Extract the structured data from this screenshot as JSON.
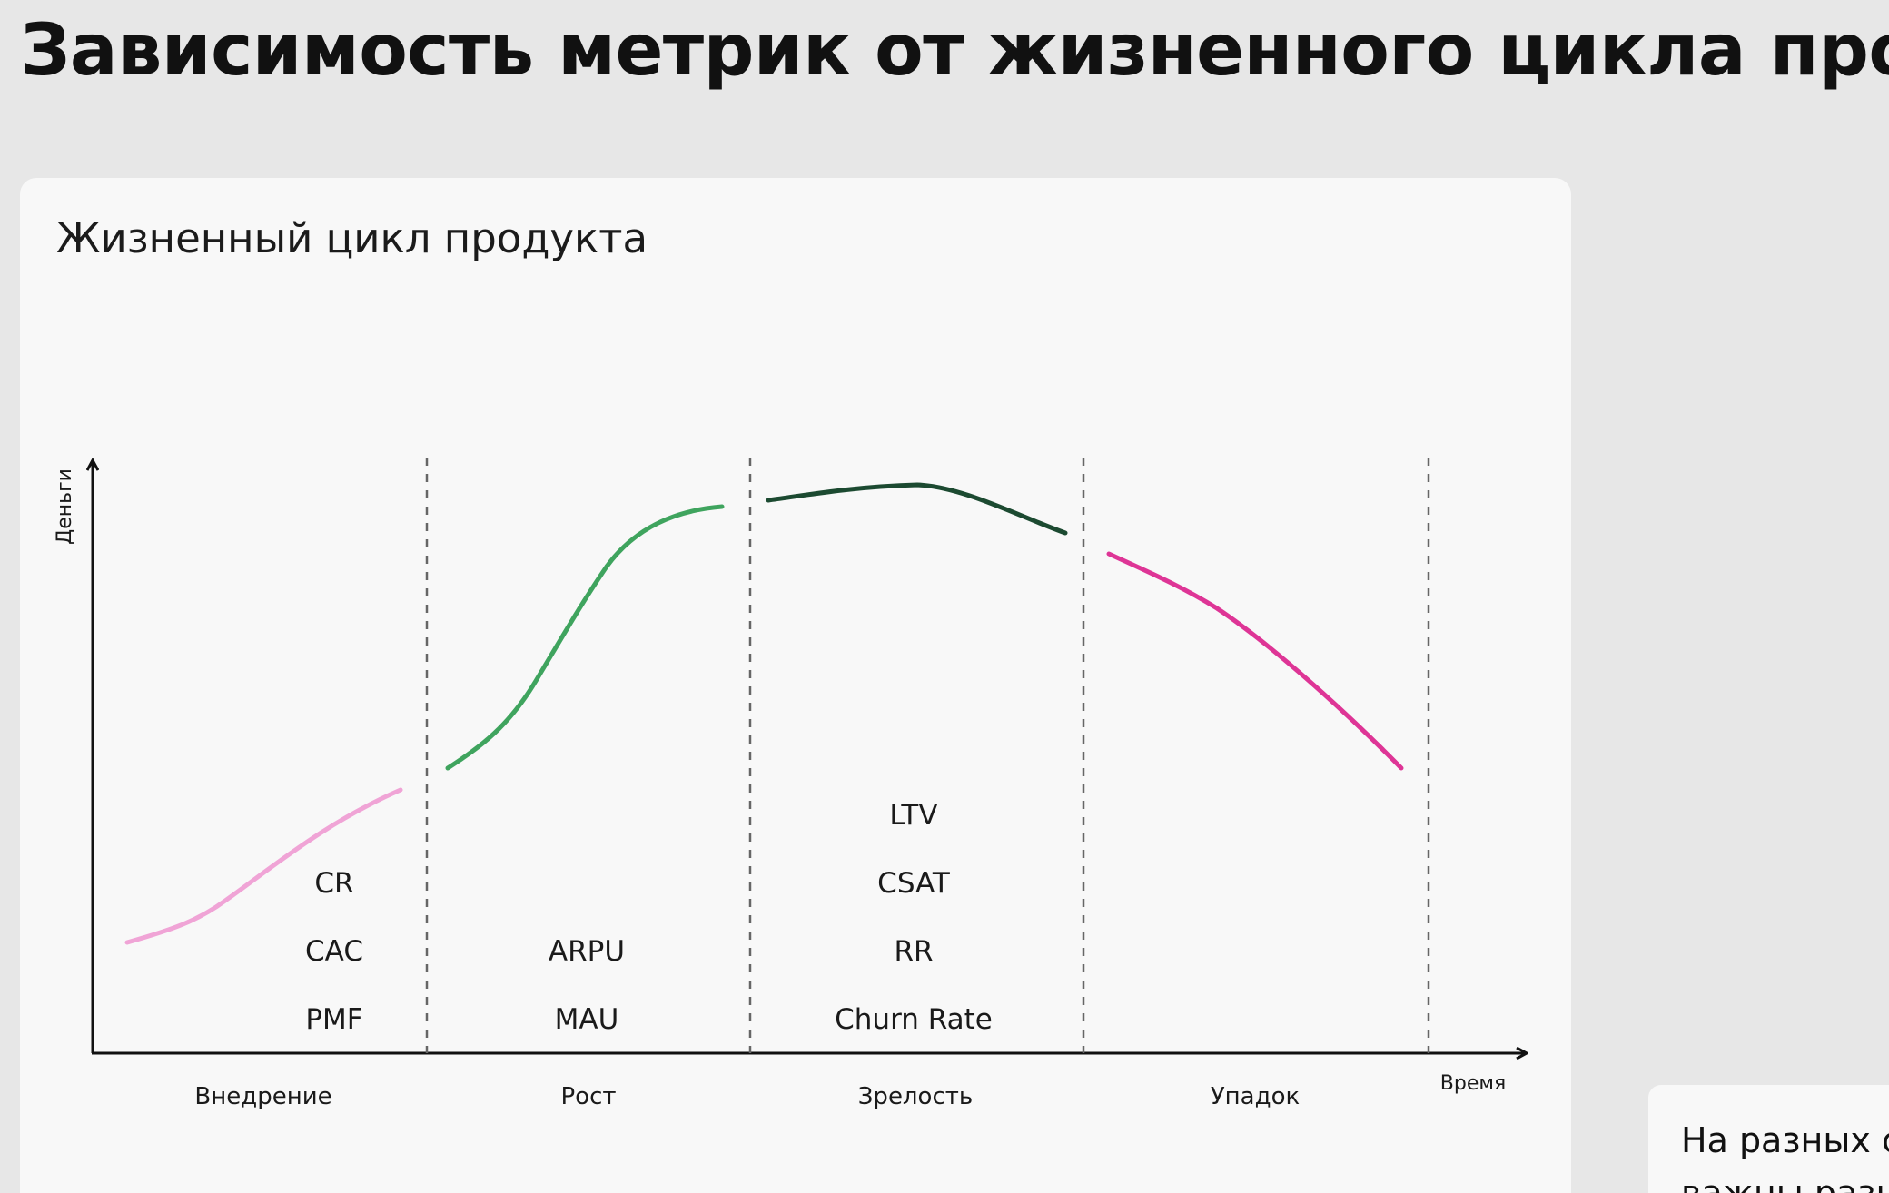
{
  "title": "Зависимость метрик от жизненного цикла продукта",
  "card": {
    "title": "Жизненный цикл продукта"
  },
  "diagram": {
    "y_axis_label": "Деньги",
    "x_axis_label": "Время",
    "stages": [
      {
        "name": "Внедрение",
        "color": "#f0a4d6",
        "metrics": [
          "CR",
          "CAC",
          "PMF"
        ]
      },
      {
        "name": "Рост",
        "color": "#3fa45e",
        "metrics": [
          "ARPU",
          "MAU"
        ]
      },
      {
        "name": "Зрелость",
        "color": "#1c4a31",
        "metrics": [
          "LTV",
          "CSAT",
          "RR",
          "Churn Rate"
        ]
      },
      {
        "name": "Упадок",
        "color": "#de3596",
        "metrics": []
      }
    ]
  },
  "side_card": {
    "line1": "На разных ст",
    "line2": "важны разн"
  }
}
